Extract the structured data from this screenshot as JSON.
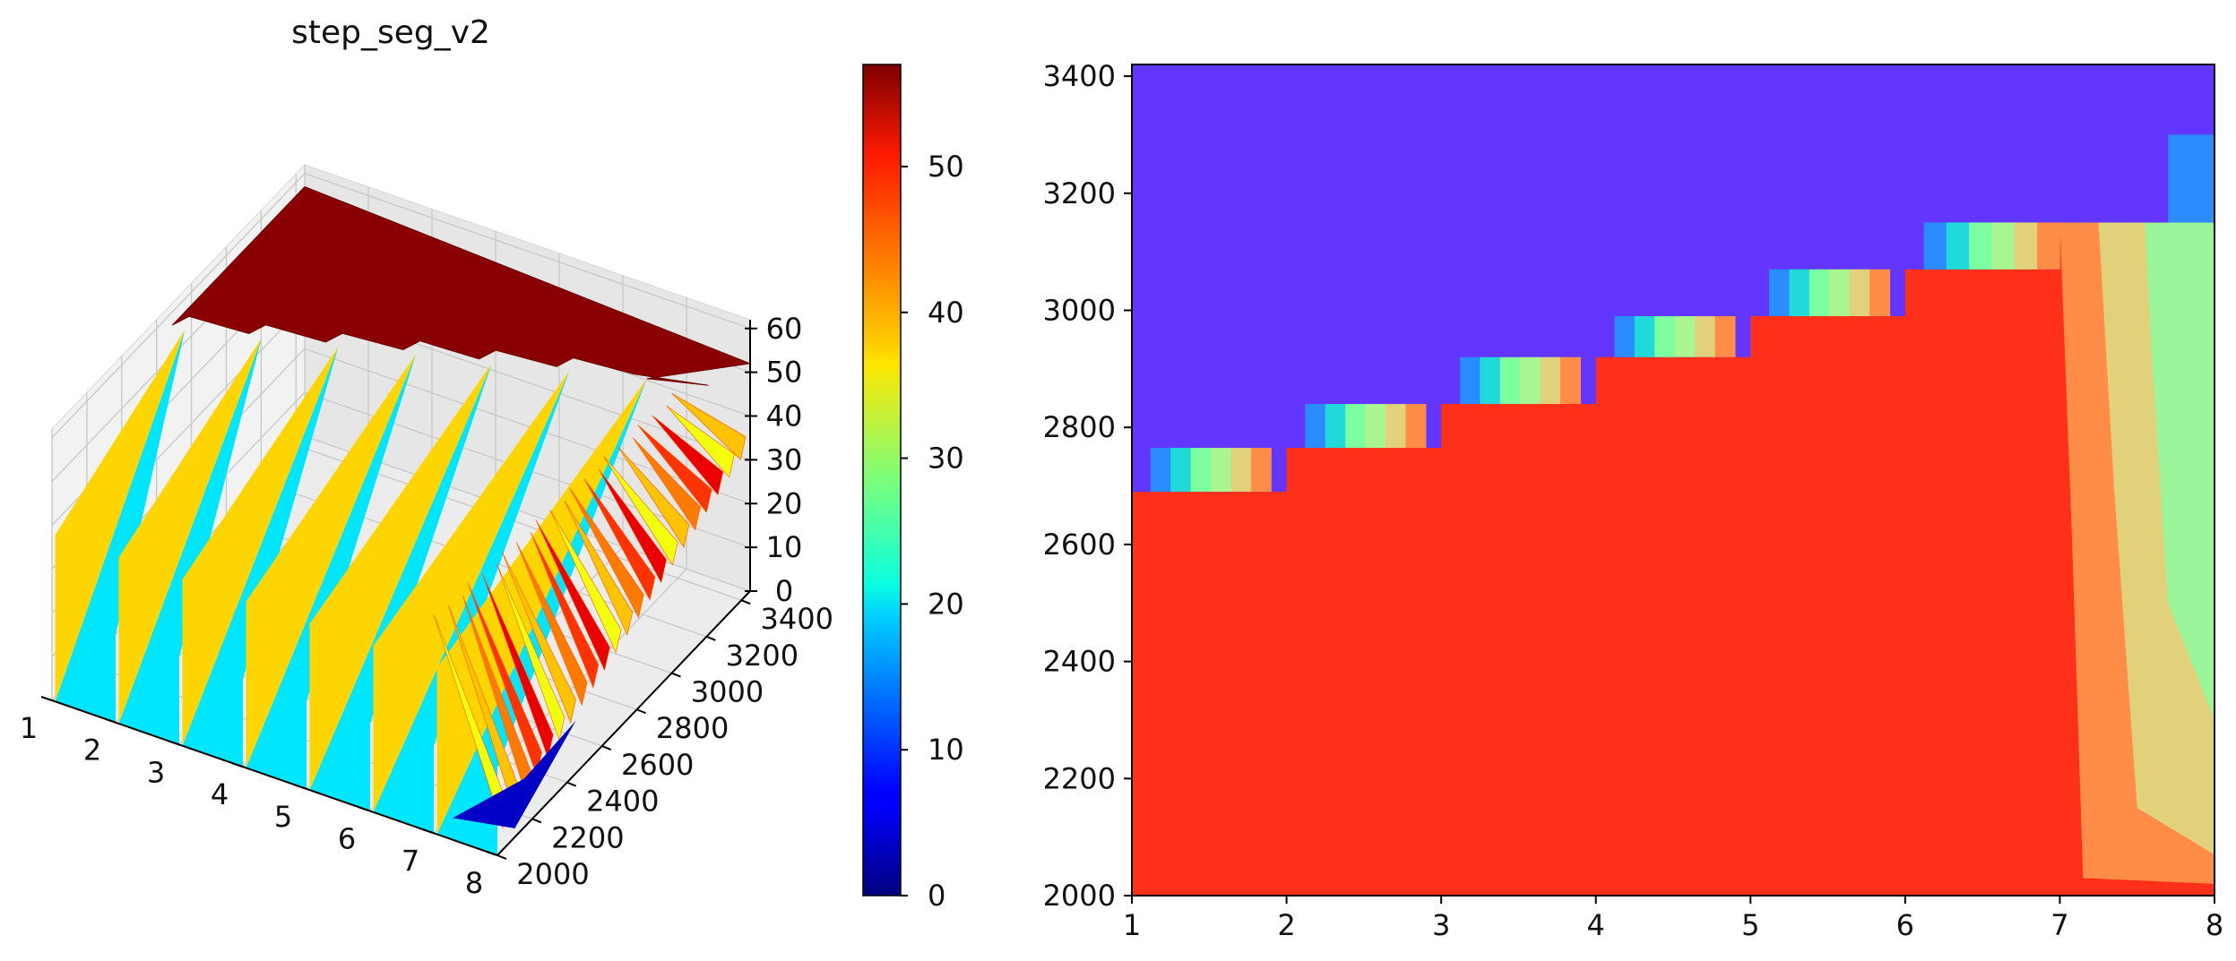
{
  "chart_data": [
    {
      "type": "surface3d",
      "title": "step_seg_v2",
      "x_ticks": [
        1,
        2,
        3,
        4,
        5,
        6,
        7,
        8
      ],
      "y_ticks": [
        2000,
        2200,
        2400,
        2600,
        2800,
        3000,
        3200,
        3400
      ],
      "z_ticks": [
        0,
        10,
        20,
        30,
        40,
        50,
        60
      ],
      "xlim": [
        1,
        8
      ],
      "ylim": [
        2000,
        3450
      ],
      "zlim": [
        0,
        62
      ],
      "grid": true,
      "step_boundaries": [
        {
          "x": [
            1,
            1.1
          ],
          "y": 2690
        },
        {
          "x": [
            2,
            2.1
          ],
          "y": 2765
        },
        {
          "x": [
            3,
            3.1
          ],
          "y": 2840
        },
        {
          "x": [
            4,
            4.1
          ],
          "y": 2920
        },
        {
          "x": [
            5,
            5.1
          ],
          "y": 2990
        },
        {
          "x": [
            6,
            6.1
          ],
          "y": 3070
        },
        {
          "x": [
            7,
            8
          ],
          "y": 3150
        }
      ],
      "plateau_value": 57,
      "lower_region_value": 20,
      "colormap": "jet"
    },
    {
      "type": "colorbar",
      "ticks": [
        0,
        10,
        20,
        30,
        40,
        50
      ],
      "range": [
        0,
        57
      ],
      "colormap": "jet"
    },
    {
      "type": "heatmap",
      "x_ticks": [
        1,
        2,
        3,
        4,
        5,
        6,
        7,
        8
      ],
      "y_ticks": [
        2000,
        2200,
        2400,
        2600,
        2800,
        3000,
        3200,
        3400
      ],
      "xlim": [
        1,
        8
      ],
      "ylim": [
        2000,
        3420
      ],
      "regions": [
        {
          "label": "upper",
          "color": "#6236ff"
        },
        {
          "label": "lower",
          "color": "#ff3019"
        },
        {
          "label": "band",
          "color": "#ff8c47"
        },
        {
          "label": "band_inner",
          "color": "#e0d17a"
        },
        {
          "label": "band_outer",
          "color": "#9af59a"
        }
      ],
      "step_boundary_y": [
        2690,
        2765,
        2840,
        2920,
        2990,
        3070,
        3150
      ],
      "step_transition_colors": [
        "#2a8cff",
        "#21d9d9",
        "#7dffa0",
        "#a9f58f",
        "#e0d17a",
        "#ff8c47"
      ]
    }
  ]
}
